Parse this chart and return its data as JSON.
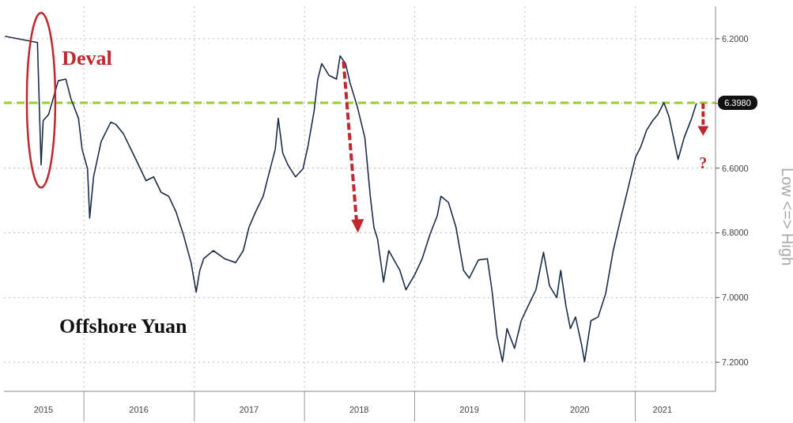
{
  "chart_data": {
    "type": "line",
    "annotations": [
      "Deval",
      "Offshore Yuan",
      "?"
    ],
    "ylabel": "Low <=> High",
    "x": [
      "2015-04-16",
      "2015-07-31",
      "2015-08-12",
      "2015-08-19",
      "2015-09-06",
      "2015-10-08",
      "2015-11-02",
      "2015-11-19",
      "2015-12-14",
      "2015-12-26",
      "2016-01-13",
      "2016-01-20",
      "2016-02-02",
      "2016-02-27",
      "2016-03-30",
      "2016-04-16",
      "2016-05-11",
      "2016-06-05",
      "2016-06-30",
      "2016-07-25",
      "2016-08-19",
      "2016-09-13",
      "2016-10-08",
      "2016-11-01",
      "2016-11-26",
      "2016-12-21",
      "2017-01-07",
      "2017-01-19",
      "2017-02-01",
      "2017-03-05",
      "2017-04-11",
      "2017-05-18",
      "2017-06-12",
      "2017-07-01",
      "2017-07-23",
      "2017-08-17",
      "2017-09-06",
      "2017-09-26",
      "2017-10-06",
      "2017-10-21",
      "2017-11-07",
      "2017-12-02",
      "2017-12-27",
      "2018-01-13",
      "2018-02-02",
      "2018-02-14",
      "2018-02-27",
      "2018-03-23",
      "2018-04-17",
      "2018-04-29",
      "2018-05-17",
      "2018-06-01",
      "2018-06-25",
      "2018-07-20",
      "2018-08-07",
      "2018-08-19",
      "2018-08-31",
      "2018-09-20",
      "2018-10-07",
      "2018-11-13",
      "2018-12-03",
      "2019-01-02",
      "2019-01-26",
      "2019-02-20",
      "2019-03-17",
      "2019-03-29",
      "2019-04-23",
      "2019-05-18",
      "2019-06-12",
      "2019-07-01",
      "2019-07-31",
      "2019-08-30",
      "2019-09-14",
      "2019-10-01",
      "2019-10-19",
      "2019-11-03",
      "2019-11-28",
      "2019-12-20",
      "2020-01-13",
      "2020-02-07",
      "2020-03-03",
      "2020-03-23",
      "2020-04-16",
      "2020-04-29",
      "2020-05-16",
      "2020-05-31",
      "2020-06-17",
      "2020-07-07",
      "2020-07-17",
      "2020-08-07",
      "2020-08-31",
      "2020-09-25",
      "2020-10-20",
      "2020-11-13",
      "2020-12-08",
      "2021-01-02",
      "2021-01-19",
      "2021-02-08",
      "2021-02-28",
      "2021-03-17",
      "2021-04-06",
      "2021-04-23",
      "2021-05-23",
      "2021-06-12",
      "2021-07-07",
      "2021-07-22"
    ],
    "series": [
      {
        "color": "#1c2d4a",
        "values": [
          6.193,
          6.212,
          6.59,
          6.453,
          6.434,
          6.33,
          6.325,
          6.386,
          6.446,
          6.542,
          6.602,
          6.754,
          6.627,
          6.518,
          6.458,
          6.465,
          6.494,
          6.542,
          6.59,
          6.639,
          6.627,
          6.675,
          6.687,
          6.735,
          6.807,
          6.892,
          6.983,
          6.916,
          6.88,
          6.855,
          6.88,
          6.892,
          6.855,
          6.783,
          6.735,
          6.687,
          6.614,
          6.542,
          6.446,
          6.554,
          6.59,
          6.627,
          6.602,
          6.53,
          6.422,
          6.325,
          6.277,
          6.313,
          6.325,
          6.253,
          6.277,
          6.337,
          6.41,
          6.506,
          6.687,
          6.783,
          6.819,
          6.952,
          6.855,
          6.916,
          6.976,
          6.928,
          6.88,
          6.807,
          6.747,
          6.687,
          6.706,
          6.783,
          6.916,
          6.94,
          6.884,
          6.88,
          6.976,
          7.12,
          7.198,
          7.096,
          7.157,
          7.072,
          7.024,
          6.976,
          6.86,
          6.964,
          7.0,
          6.916,
          7.024,
          7.096,
          7.06,
          7.145,
          7.198,
          7.072,
          7.06,
          6.988,
          6.855,
          6.759,
          6.663,
          6.566,
          6.535,
          6.482,
          6.453,
          6.434,
          6.398,
          6.441,
          6.573,
          6.506,
          6.446,
          6.402
        ]
      }
    ],
    "xlim": [
      "2015-04-11",
      "2021-09-24"
    ],
    "xticks": [
      {
        "value": "2015-08-20",
        "label": "2015"
      },
      {
        "value": "2016-01-01",
        "label": null
      },
      {
        "value": "2016-07-01",
        "label": "2016"
      },
      {
        "value": "2017-01-01",
        "label": null
      },
      {
        "value": "2017-07-01",
        "label": "2017"
      },
      {
        "value": "2018-01-01",
        "label": null
      },
      {
        "value": "2018-07-01",
        "label": "2018"
      },
      {
        "value": "2019-01-01",
        "label": null
      },
      {
        "value": "2019-07-01",
        "label": "2019"
      },
      {
        "value": "2020-01-01",
        "label": null
      },
      {
        "value": "2020-07-01",
        "label": "2020"
      },
      {
        "value": "2021-01-01",
        "label": null
      },
      {
        "value": "2021-04-01",
        "label": "2021"
      }
    ],
    "ylim": [
      7.29,
      6.1
    ],
    "yticks": [
      {
        "value": 6.2,
        "label": "6.2000"
      },
      {
        "value": 6.4,
        "label": null
      },
      {
        "value": 6.6,
        "label": "6.6000"
      },
      {
        "value": 6.8,
        "label": "6.8000"
      },
      {
        "value": 7.0,
        "label": "7.0000"
      },
      {
        "value": 7.2,
        "label": "7.2000"
      }
    ],
    "ref_lines": [
      {
        "axis": "y",
        "value": 6.398,
        "label": "6.3980",
        "color": "#9acd32",
        "line_style": "dashed"
      }
    ],
    "grid": true,
    "line_style": "solid"
  }
}
